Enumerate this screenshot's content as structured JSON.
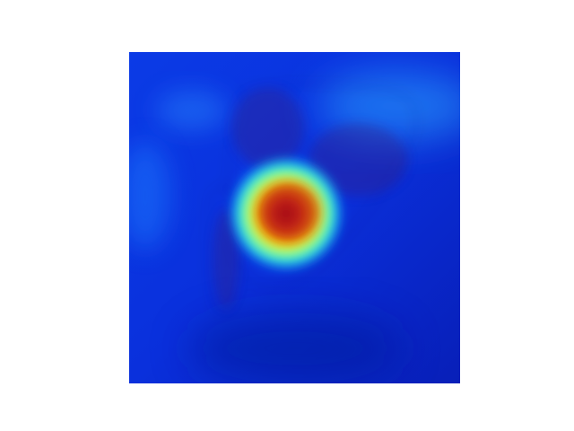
{
  "figure": {
    "background": "#ffffff",
    "colormap": [
      "#00008f",
      "#0000ff",
      "#00c8ff",
      "#7fff7f",
      "#ffff00",
      "#ff0000",
      "#800000"
    ],
    "base_tone": "#0a2fe0"
  }
}
